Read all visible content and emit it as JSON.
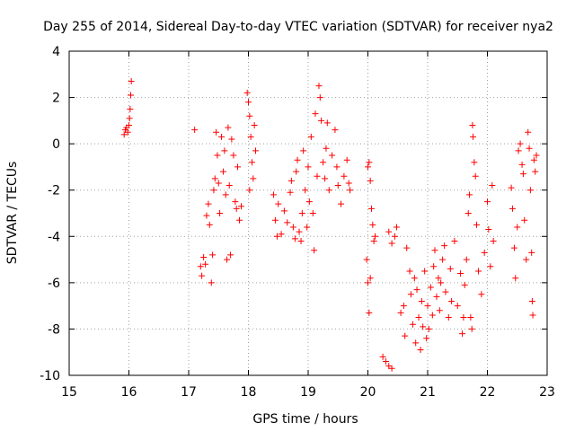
{
  "chart_data": {
    "type": "scatter",
    "title": "Day 255 of 2014, Sidereal Day-to-day VTEC variation (SDTVAR) for receiver nya2",
    "xlabel": "GPS time / hours",
    "ylabel": "SDTVAR / TECUs",
    "xlim": [
      15,
      23
    ],
    "ylim": [
      -10,
      4
    ],
    "xticks": [
      15,
      16,
      17,
      18,
      19,
      20,
      21,
      22,
      23
    ],
    "yticks": [
      -10,
      -8,
      -6,
      -4,
      -2,
      0,
      2,
      4
    ],
    "grid": true,
    "marker": "+",
    "color": "#ff0000",
    "series": [
      {
        "name": "SDTVAR",
        "points": [
          [
            15.92,
            0.4
          ],
          [
            15.94,
            0.6
          ],
          [
            15.96,
            0.7
          ],
          [
            15.98,
            0.5
          ],
          [
            16.0,
            0.8
          ],
          [
            16.01,
            1.1
          ],
          [
            16.02,
            1.5
          ],
          [
            16.03,
            2.1
          ],
          [
            16.04,
            2.7
          ],
          [
            17.1,
            0.6
          ],
          [
            17.2,
            -5.3
          ],
          [
            17.22,
            -5.7
          ],
          [
            17.25,
            -4.9
          ],
          [
            17.28,
            -5.2
          ],
          [
            17.3,
            -3.1
          ],
          [
            17.33,
            -2.6
          ],
          [
            17.35,
            -3.5
          ],
          [
            17.38,
            -6.0
          ],
          [
            17.4,
            -4.8
          ],
          [
            17.42,
            -2.0
          ],
          [
            17.44,
            -1.5
          ],
          [
            17.46,
            0.5
          ],
          [
            17.48,
            -0.5
          ],
          [
            17.5,
            -1.7
          ],
          [
            17.52,
            -3.0
          ],
          [
            17.55,
            0.3
          ],
          [
            17.58,
            -1.2
          ],
          [
            17.6,
            -0.3
          ],
          [
            17.62,
            -2.2
          ],
          [
            17.64,
            -5.0
          ],
          [
            17.66,
            0.7
          ],
          [
            17.68,
            -1.8
          ],
          [
            17.7,
            -4.8
          ],
          [
            17.72,
            0.2
          ],
          [
            17.75,
            -0.5
          ],
          [
            17.78,
            -2.5
          ],
          [
            17.8,
            -2.8
          ],
          [
            17.82,
            -1.0
          ],
          [
            17.85,
            -3.3
          ],
          [
            17.88,
            -2.7
          ],
          [
            17.98,
            2.2
          ],
          [
            18.0,
            1.8
          ],
          [
            18.02,
            1.2
          ],
          [
            18.04,
            0.3
          ],
          [
            18.06,
            -0.8
          ],
          [
            18.08,
            -1.5
          ],
          [
            18.1,
            0.8
          ],
          [
            18.12,
            -0.3
          ],
          [
            18.02,
            -2.0
          ],
          [
            18.42,
            -2.2
          ],
          [
            18.45,
            -3.3
          ],
          [
            18.48,
            -4.0
          ],
          [
            18.5,
            -2.6
          ],
          [
            18.55,
            -3.9
          ],
          [
            18.6,
            -2.9
          ],
          [
            18.65,
            -3.4
          ],
          [
            18.7,
            -2.1
          ],
          [
            18.72,
            -1.6
          ],
          [
            18.75,
            -3.6
          ],
          [
            18.78,
            -4.1
          ],
          [
            18.8,
            -1.2
          ],
          [
            18.82,
            -0.7
          ],
          [
            18.85,
            -3.8
          ],
          [
            18.88,
            -4.2
          ],
          [
            18.9,
            -3.0
          ],
          [
            18.92,
            -0.3
          ],
          [
            18.95,
            -2.0
          ],
          [
            18.98,
            -3.6
          ],
          [
            19.0,
            -1.0
          ],
          [
            19.02,
            -2.5
          ],
          [
            19.05,
            0.3
          ],
          [
            19.08,
            -3.0
          ],
          [
            19.1,
            -4.6
          ],
          [
            19.12,
            1.3
          ],
          [
            19.15,
            -1.4
          ],
          [
            19.18,
            2.5
          ],
          [
            19.2,
            2.0
          ],
          [
            19.22,
            1.0
          ],
          [
            19.25,
            -0.8
          ],
          [
            19.28,
            -1.5
          ],
          [
            19.3,
            -0.2
          ],
          [
            19.32,
            0.9
          ],
          [
            19.35,
            -2.0
          ],
          [
            19.4,
            -0.5
          ],
          [
            19.45,
            0.6
          ],
          [
            19.48,
            -1.0
          ],
          [
            19.5,
            -1.8
          ],
          [
            19.55,
            -2.6
          ],
          [
            19.6,
            -1.4
          ],
          [
            19.65,
            -0.7
          ],
          [
            19.68,
            -1.7
          ],
          [
            19.7,
            -2.0
          ],
          [
            20.0,
            -1.0
          ],
          [
            20.02,
            -0.8
          ],
          [
            20.04,
            -1.6
          ],
          [
            20.06,
            -2.8
          ],
          [
            20.08,
            -3.5
          ],
          [
            20.1,
            -4.2
          ],
          [
            20.12,
            -4.0
          ],
          [
            19.98,
            -5.0
          ],
          [
            20.0,
            -6.0
          ],
          [
            20.02,
            -7.3
          ],
          [
            20.04,
            -5.8
          ],
          [
            20.25,
            -9.2
          ],
          [
            20.3,
            -9.4
          ],
          [
            20.35,
            -9.6
          ],
          [
            20.4,
            -9.7
          ],
          [
            20.35,
            -3.8
          ],
          [
            20.4,
            -4.3
          ],
          [
            20.45,
            -4.0
          ],
          [
            20.48,
            -3.6
          ],
          [
            20.55,
            -7.3
          ],
          [
            20.6,
            -7.0
          ],
          [
            20.62,
            -8.3
          ],
          [
            20.65,
            -4.5
          ],
          [
            20.7,
            -5.5
          ],
          [
            20.72,
            -6.5
          ],
          [
            20.75,
            -7.8
          ],
          [
            20.78,
            -5.8
          ],
          [
            20.8,
            -8.6
          ],
          [
            20.82,
            -6.3
          ],
          [
            20.85,
            -7.5
          ],
          [
            20.88,
            -8.9
          ],
          [
            20.9,
            -6.8
          ],
          [
            20.92,
            -7.9
          ],
          [
            20.95,
            -5.5
          ],
          [
            20.98,
            -8.4
          ],
          [
            21.0,
            -7.0
          ],
          [
            21.02,
            -8.0
          ],
          [
            21.05,
            -6.2
          ],
          [
            21.08,
            -7.4
          ],
          [
            21.1,
            -5.3
          ],
          [
            21.12,
            -4.6
          ],
          [
            21.15,
            -6.6
          ],
          [
            21.18,
            -5.8
          ],
          [
            21.2,
            -7.2
          ],
          [
            21.22,
            -6.0
          ],
          [
            21.25,
            -5.0
          ],
          [
            21.28,
            -4.4
          ],
          [
            21.3,
            -6.4
          ],
          [
            21.35,
            -7.5
          ],
          [
            21.38,
            -5.4
          ],
          [
            21.4,
            -6.8
          ],
          [
            21.45,
            -4.2
          ],
          [
            21.5,
            -7.0
          ],
          [
            21.55,
            -5.6
          ],
          [
            21.58,
            -8.2
          ],
          [
            21.6,
            -7.5
          ],
          [
            21.62,
            -6.1
          ],
          [
            21.65,
            -5.0
          ],
          [
            21.68,
            -3.0
          ],
          [
            21.7,
            -2.2
          ],
          [
            21.72,
            -7.5
          ],
          [
            21.74,
            -8.0
          ],
          [
            21.75,
            0.8
          ],
          [
            21.76,
            0.3
          ],
          [
            21.78,
            -0.8
          ],
          [
            21.8,
            -1.4
          ],
          [
            21.82,
            -3.5
          ],
          [
            21.85,
            -5.5
          ],
          [
            21.9,
            -6.5
          ],
          [
            21.95,
            -4.7
          ],
          [
            22.0,
            -2.5
          ],
          [
            22.02,
            -3.7
          ],
          [
            22.05,
            -5.3
          ],
          [
            22.08,
            -1.8
          ],
          [
            22.1,
            -4.2
          ],
          [
            22.4,
            -1.9
          ],
          [
            22.42,
            -2.8
          ],
          [
            22.45,
            -4.5
          ],
          [
            22.47,
            -5.8
          ],
          [
            22.5,
            -3.6
          ],
          [
            22.52,
            -0.3
          ],
          [
            22.55,
            0.0
          ],
          [
            22.58,
            -0.9
          ],
          [
            22.6,
            -1.3
          ],
          [
            22.62,
            -3.3
          ],
          [
            22.65,
            -5.0
          ],
          [
            22.68,
            0.5
          ],
          [
            22.7,
            -0.2
          ],
          [
            22.72,
            -2.0
          ],
          [
            22.74,
            -4.7
          ],
          [
            22.75,
            -6.8
          ],
          [
            22.76,
            -7.4
          ],
          [
            22.78,
            -0.7
          ],
          [
            22.8,
            -1.2
          ],
          [
            22.82,
            -0.5
          ]
        ]
      }
    ]
  }
}
